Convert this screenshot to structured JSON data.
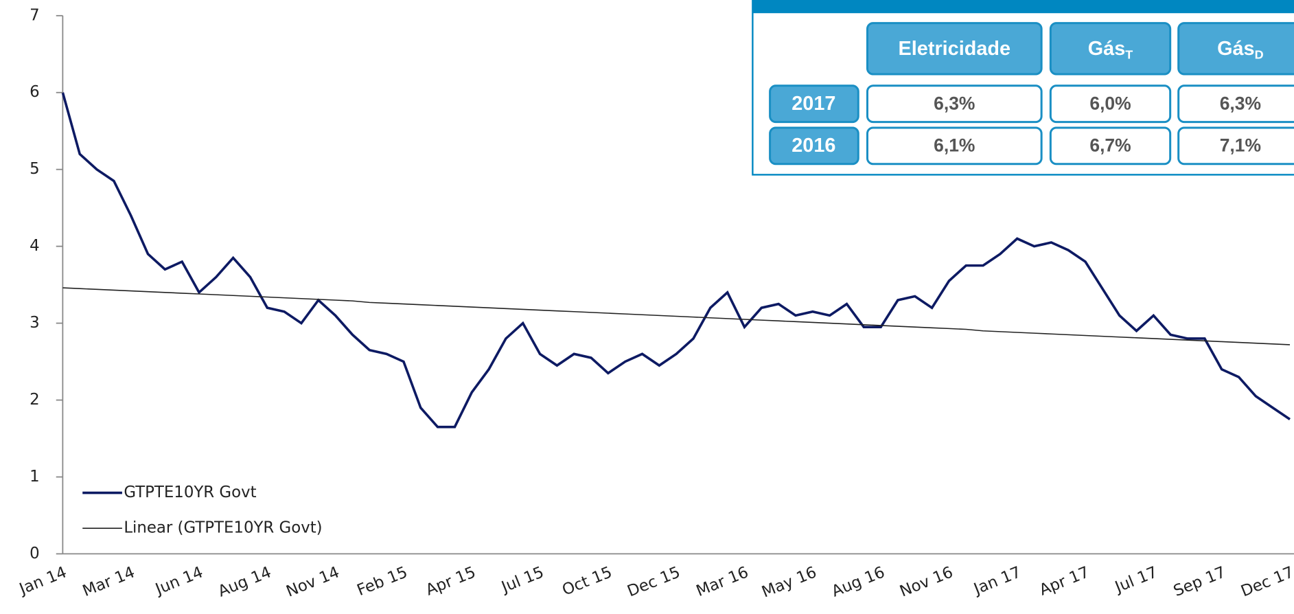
{
  "chart_data": {
    "type": "line",
    "categories": [
      "Jan 14",
      null,
      null,
      null,
      "Mar 14",
      null,
      null,
      null,
      "Jun 14",
      null,
      null,
      null,
      "Aug 14",
      null,
      null,
      null,
      "Nov 14",
      null,
      null,
      null,
      "Feb 15",
      null,
      null,
      null,
      "Apr 15",
      null,
      null,
      null,
      "Jul 15",
      null,
      null,
      null,
      "Oct 15",
      null,
      null,
      null,
      "Dec 15",
      null,
      null,
      null,
      "Mar 16",
      null,
      null,
      null,
      "May 16",
      null,
      null,
      null,
      "Aug 16",
      null,
      null,
      null,
      "Nov 16",
      null,
      null,
      null,
      "Jan 17",
      null,
      null,
      null,
      "Apr 17",
      null,
      null,
      null,
      "Jul 17",
      null,
      null,
      null,
      "Sep 17",
      null,
      null,
      null,
      "Dec 17"
    ],
    "series": [
      {
        "name": "GTPTE10YR Govt",
        "color": "#0d1a63",
        "values": [
          6.0,
          5.2,
          5.0,
          4.85,
          4.4,
          3.9,
          3.7,
          3.8,
          3.4,
          3.6,
          3.85,
          3.6,
          3.2,
          3.15,
          3.0,
          3.3,
          3.1,
          2.85,
          2.65,
          2.6,
          2.5,
          1.9,
          1.65,
          1.65,
          2.1,
          2.4,
          2.8,
          3.0,
          2.6,
          2.45,
          2.6,
          2.55,
          2.35,
          2.5,
          2.6,
          2.45,
          2.6,
          2.8,
          3.2,
          3.4,
          2.95,
          3.2,
          3.25,
          3.1,
          3.15,
          3.1,
          3.25,
          2.95,
          2.95,
          3.3,
          3.35,
          3.2,
          3.55,
          3.75,
          3.75,
          3.9,
          4.1,
          4.0,
          4.05,
          3.95,
          3.8,
          3.45,
          3.1,
          2.9,
          3.1,
          2.85,
          2.8,
          2.8,
          2.4,
          2.3,
          2.05,
          1.9,
          1.75
        ]
      },
      {
        "name": "Linear (GTPTE10YR Govt)",
        "color": "#222222",
        "values": [
          3.46,
          3.45,
          3.44,
          3.43,
          3.42,
          3.41,
          3.4,
          3.39,
          3.38,
          3.37,
          3.36,
          3.35,
          3.34,
          3.33,
          3.32,
          3.31,
          3.3,
          3.29,
          3.27,
          3.26,
          3.25,
          3.24,
          3.23,
          3.22,
          3.21,
          3.2,
          3.19,
          3.18,
          3.17,
          3.16,
          3.15,
          3.14,
          3.13,
          3.12,
          3.11,
          3.1,
          3.09,
          3.08,
          3.07,
          3.06,
          3.05,
          3.04,
          3.03,
          3.02,
          3.01,
          3.0,
          2.99,
          2.98,
          2.97,
          2.96,
          2.95,
          2.94,
          2.93,
          2.92,
          2.9,
          2.89,
          2.88,
          2.87,
          2.86,
          2.85,
          2.84,
          2.83,
          2.82,
          2.81,
          2.8,
          2.79,
          2.78,
          2.77,
          2.76,
          2.75,
          2.74,
          2.73,
          2.72
        ]
      }
    ],
    "ylim": [
      0,
      7
    ],
    "yticks": [
      0,
      1,
      2,
      3,
      4,
      5,
      6,
      7
    ],
    "legend": "lower-left"
  },
  "table": {
    "header": [
      {
        "text": "Eletricidade"
      },
      {
        "text": "Gás",
        "sub": "T"
      },
      {
        "text": "Gás",
        "sub": "D"
      }
    ],
    "rows": [
      [
        "2017",
        "6,3%",
        "6,0%",
        "6,3%"
      ],
      [
        "2016",
        "6,1%",
        "6,7%",
        "7,1%"
      ]
    ]
  }
}
